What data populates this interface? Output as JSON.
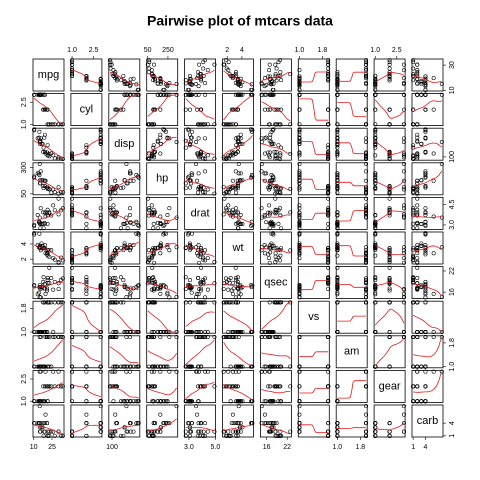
{
  "chart_data": {
    "type": "scatter_matrix",
    "title": "Pairwise plot of mtcars data",
    "variables": [
      {
        "name": "mpg",
        "values": [
          21,
          21,
          22.8,
          21.4,
          18.7,
          18.1,
          14.3,
          24.4,
          22.8,
          19.2,
          17.8,
          16.4,
          17.3,
          15.2,
          10.4,
          10.4,
          14.7,
          32.4,
          30.4,
          33.9,
          21.5,
          15.5,
          15.2,
          13.3,
          19.2,
          27.3,
          26,
          30.4,
          15.8,
          19.7,
          15,
          21.4
        ],
        "lim": [
          9.46,
          34.84
        ],
        "xticks": [
          10,
          25
        ],
        "yticks": [
          10,
          30
        ]
      },
      {
        "name": "cyl",
        "values": [
          2,
          2,
          1,
          2,
          3,
          2,
          3,
          1,
          1,
          2,
          2,
          3,
          3,
          3,
          3,
          3,
          3,
          1,
          1,
          1,
          1,
          3,
          3,
          3,
          3,
          1,
          1,
          1,
          3,
          2,
          3,
          1
        ],
        "lim": [
          0.92,
          3.08
        ],
        "xticks": [
          {
            "value": 1,
            "label": "1.0"
          },
          2.5
        ],
        "yticks": [
          {
            "value": 1,
            "label": "1.0"
          },
          2.5
        ]
      },
      {
        "name": "disp",
        "values": [
          160,
          160,
          108,
          258,
          360,
          225,
          360,
          146.7,
          140.8,
          167.6,
          167.6,
          275.8,
          275.8,
          275.8,
          472,
          460,
          440,
          78.7,
          75.7,
          71.1,
          120.1,
          318,
          304,
          350,
          400,
          79,
          120.3,
          95.1,
          351,
          145,
          301,
          121
        ],
        "lim": [
          55.06,
          488.04
        ],
        "xticks": [
          100
        ],
        "yticks": [
          100
        ]
      },
      {
        "name": "hp",
        "values": [
          110,
          110,
          93,
          110,
          175,
          105,
          245,
          62,
          95,
          123,
          123,
          180,
          180,
          180,
          205,
          215,
          230,
          66,
          52,
          65,
          97,
          150,
          150,
          245,
          175,
          66,
          91,
          113,
          264,
          175,
          335,
          109
        ],
        "lim": [
          40.68,
          346.32
        ],
        "xticks": [
          50,
          250
        ],
        "yticks": [
          50,
          300
        ]
      },
      {
        "name": "drat",
        "values": [
          3.9,
          3.9,
          3.85,
          3.08,
          3.15,
          2.76,
          3.21,
          3.69,
          3.92,
          3.92,
          3.92,
          3.07,
          3.07,
          3.07,
          2.93,
          3,
          3.23,
          4.08,
          4.93,
          4.22,
          3.7,
          2.76,
          3.15,
          3.73,
          3.08,
          4.08,
          4.43,
          3.77,
          4.22,
          3.62,
          3.54,
          4.11
        ],
        "lim": [
          2.673,
          5.017
        ],
        "xticks": [
          {
            "value": 3,
            "label": "3.0"
          },
          {
            "value": 5,
            "label": "5.0"
          }
        ],
        "yticks": [
          {
            "value": 3,
            "label": "3.0"
          },
          4.5
        ]
      },
      {
        "name": "wt",
        "values": [
          2.62,
          2.875,
          2.32,
          3.215,
          3.44,
          3.46,
          3.57,
          3.19,
          3.15,
          3.44,
          3.44,
          4.07,
          3.73,
          3.78,
          5.25,
          5.424,
          5.345,
          2.2,
          1.615,
          1.835,
          2.465,
          3.52,
          3.435,
          3.84,
          3.845,
          1.935,
          2.14,
          1.513,
          3.17,
          2.77,
          3.57,
          2.78
        ],
        "lim": [
          1.357,
          5.58
        ],
        "xticks": [
          2,
          4
        ],
        "yticks": [
          2,
          4
        ]
      },
      {
        "name": "qsec",
        "values": [
          16.46,
          17.02,
          18.61,
          19.44,
          17.02,
          20.22,
          15.84,
          20,
          22.9,
          18.3,
          18.9,
          17.4,
          17.6,
          18,
          17.98,
          17.82,
          17.42,
          19.47,
          18.52,
          19.9,
          20.01,
          16.87,
          17.3,
          15.41,
          17.05,
          18.9,
          16.7,
          16.9,
          14.5,
          15.5,
          14.6,
          18.6
        ],
        "lim": [
          14.164,
          23.236
        ],
        "xticks": [
          16,
          22
        ],
        "yticks": [
          16,
          22
        ]
      },
      {
        "name": "vs",
        "values": [
          1,
          1,
          2,
          2,
          1,
          2,
          1,
          2,
          2,
          2,
          2,
          1,
          1,
          1,
          1,
          1,
          1,
          2,
          2,
          2,
          2,
          1,
          1,
          1,
          1,
          2,
          1,
          2,
          1,
          1,
          1,
          2
        ],
        "lim": [
          0.96,
          2.04
        ],
        "xticks": [
          {
            "value": 1,
            "label": "1.0"
          },
          1.8
        ],
        "yticks": [
          {
            "value": 1,
            "label": "1.0"
          },
          1.8
        ]
      },
      {
        "name": "am",
        "values": [
          2,
          2,
          2,
          1,
          1,
          1,
          1,
          1,
          1,
          1,
          1,
          1,
          1,
          1,
          1,
          1,
          1,
          2,
          2,
          2,
          1,
          1,
          1,
          1,
          1,
          2,
          2,
          2,
          2,
          2,
          2,
          2
        ],
        "lim": [
          0.96,
          2.04
        ],
        "xticks": [
          {
            "value": 1,
            "label": "1.0"
          },
          1.8
        ],
        "yticks": [
          {
            "value": 1,
            "label": "1.0"
          },
          1.8
        ]
      },
      {
        "name": "gear",
        "values": [
          2,
          2,
          2,
          1,
          1,
          1,
          1,
          2,
          2,
          2,
          2,
          1,
          1,
          1,
          1,
          1,
          1,
          2,
          2,
          2,
          1,
          1,
          1,
          1,
          1,
          2,
          3,
          3,
          3,
          3,
          3,
          2
        ],
        "lim": [
          0.92,
          3.08
        ],
        "xticks": [
          {
            "value": 1,
            "label": "1.0"
          },
          2.5
        ],
        "yticks": [
          {
            "value": 1,
            "label": "1.0"
          },
          2.5
        ]
      },
      {
        "name": "carb",
        "values": [
          4,
          4,
          1,
          1,
          2,
          1,
          4,
          2,
          2,
          4,
          4,
          3,
          3,
          3,
          4,
          4,
          4,
          1,
          2,
          1,
          1,
          2,
          2,
          4,
          2,
          1,
          2,
          2,
          4,
          6,
          8,
          2
        ],
        "lim": [
          0.72,
          8.28
        ],
        "xticks": [
          1,
          4
        ],
        "yticks": [
          1,
          4
        ]
      }
    ]
  }
}
